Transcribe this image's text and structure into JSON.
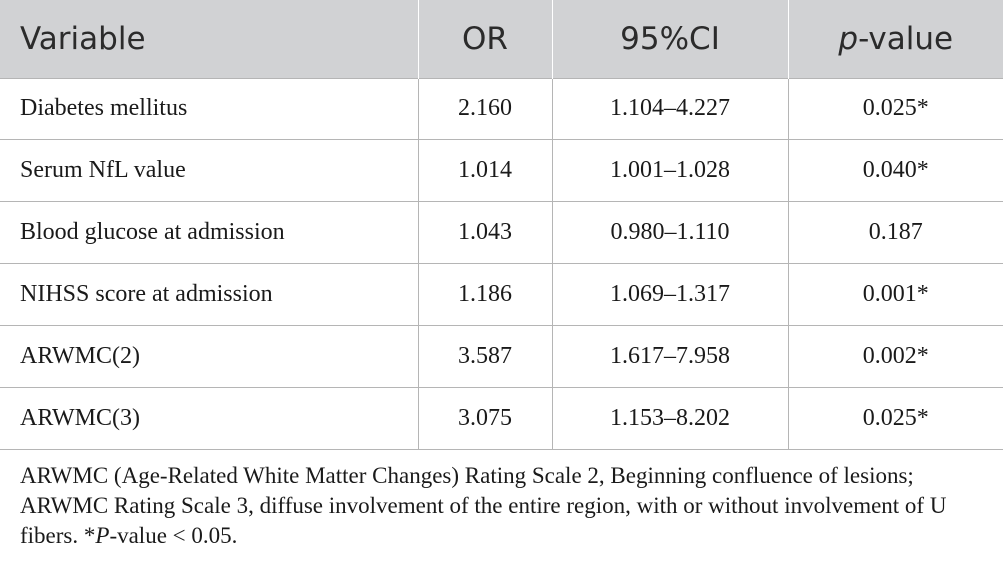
{
  "table": {
    "headers": {
      "variable": "Variable",
      "or": "OR",
      "ci": "95%CI",
      "p_italic": "p",
      "p_rest": "-value"
    },
    "rows": [
      {
        "variable": "Diabetes mellitus",
        "or": "2.160",
        "ci": "1.104–4.227",
        "p": "0.025*"
      },
      {
        "variable": "Serum NfL value",
        "or": "1.014",
        "ci": "1.001–1.028",
        "p": "0.040*"
      },
      {
        "variable": "Blood glucose at admission",
        "or": "1.043",
        "ci": "0.980–1.110",
        "p": "0.187"
      },
      {
        "variable": "NIHSS score at admission",
        "or": "1.186",
        "ci": "1.069–1.317",
        "p": "0.001*"
      },
      {
        "variable": "ARWMC(2)",
        "or": "3.587",
        "ci": "1.617–7.958",
        "p": "0.002*"
      },
      {
        "variable": "ARWMC(3)",
        "or": "3.075",
        "ci": "1.153–8.202",
        "p": "0.025*"
      }
    ]
  },
  "footnote": {
    "main": "ARWMC (Age-Related White Matter Changes) Rating Scale 2, Beginning confluence of lesions; ARWMC Rating Scale 3, diffuse involvement of the entire region, with or without involvement of U fibers. *",
    "p_italic": "P",
    "end": "-value < 0.05."
  }
}
